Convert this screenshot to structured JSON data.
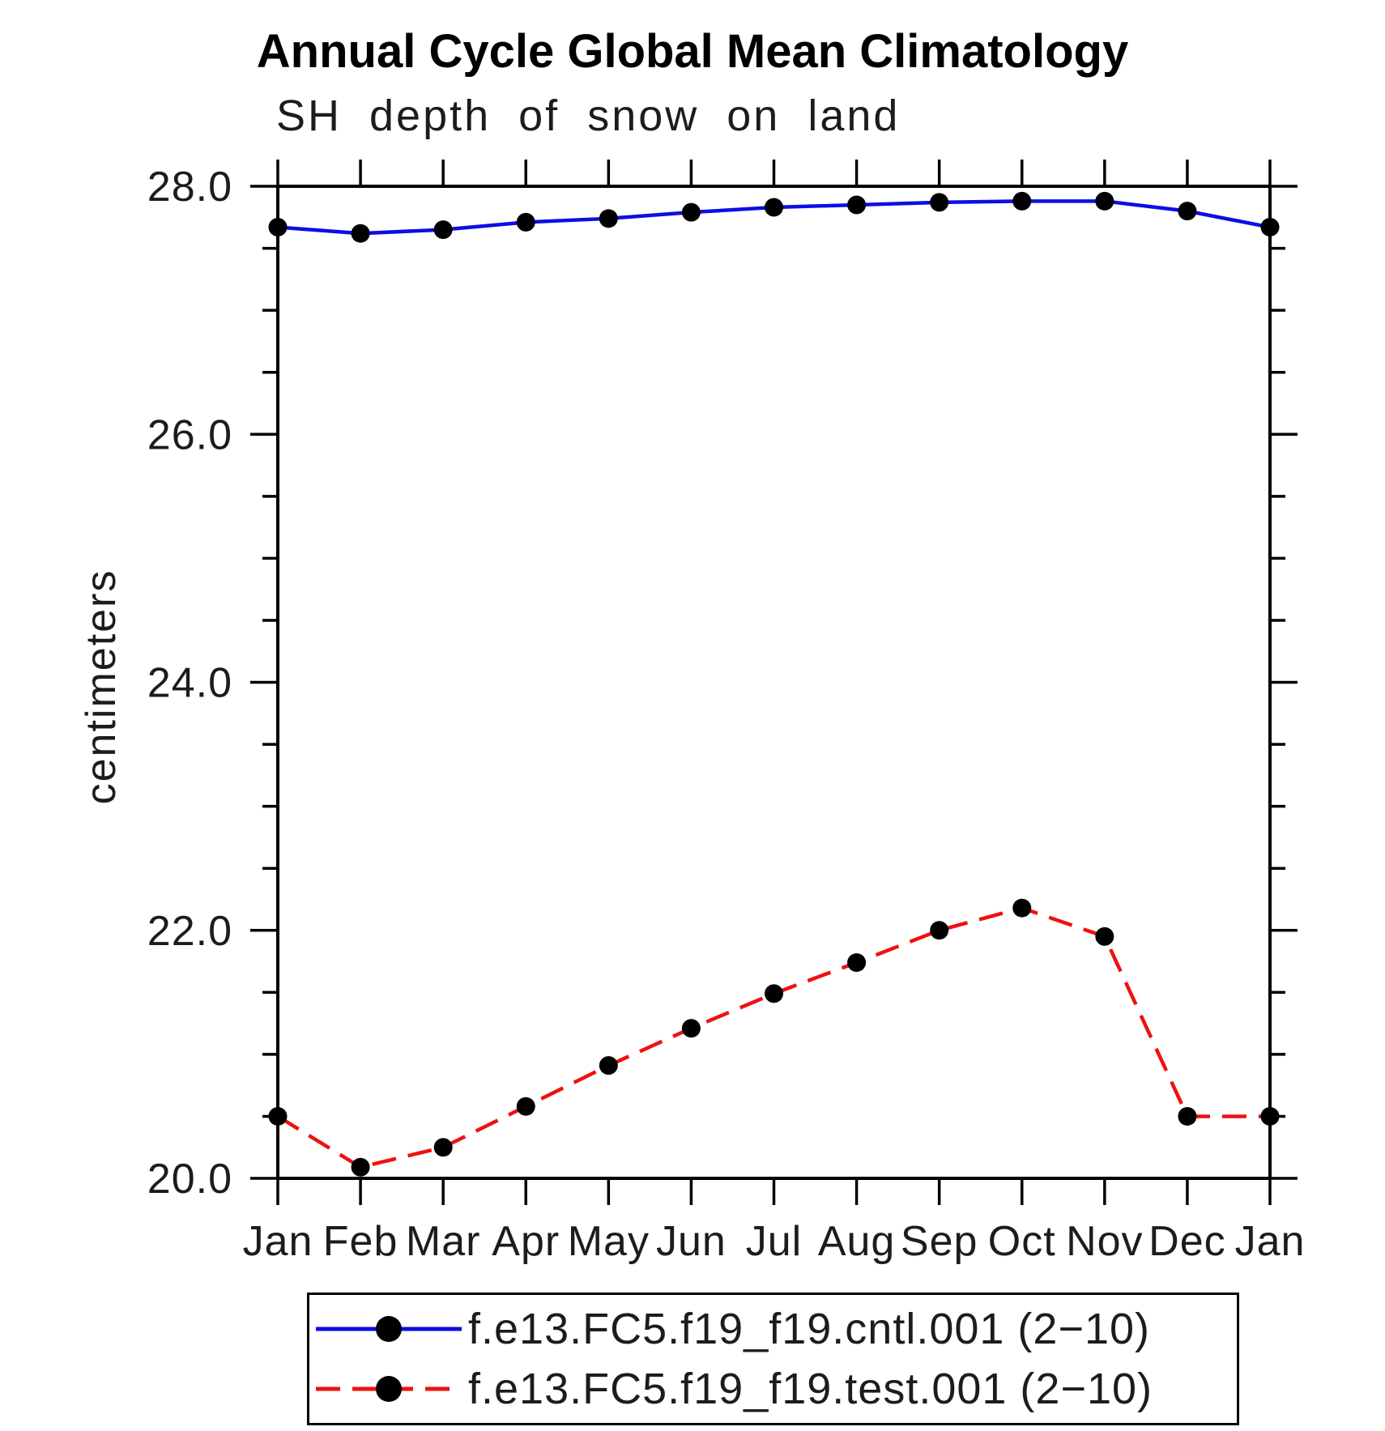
{
  "chart_data": {
    "type": "line",
    "title": "Annual Cycle Global Mean Climatology",
    "subtitle": "SH depth of snow on land",
    "ylabel": "centimeters",
    "xlabel": "",
    "categories": [
      "Jan",
      "Feb",
      "Mar",
      "Apr",
      "May",
      "Jun",
      "Jul",
      "Aug",
      "Sep",
      "Oct",
      "Nov",
      "Dec",
      "Jan"
    ],
    "series": [
      {
        "name": "f.e13.FC5.f19_f19.cntl.001 (2−10)",
        "color": "#0d0de6",
        "line_style": "solid",
        "marker": "black-circle",
        "values": [
          27.67,
          27.62,
          27.65,
          27.71,
          27.74,
          27.79,
          27.83,
          27.85,
          27.87,
          27.88,
          27.88,
          27.8,
          27.67
        ]
      },
      {
        "name": "f.e13.FC5.f19_f19.test.001 (2−10)",
        "color": "#ee1111",
        "line_style": "dashed",
        "marker": "black-circle",
        "values": [
          20.5,
          20.09,
          20.25,
          20.58,
          20.91,
          21.21,
          21.49,
          21.74,
          22.0,
          22.18,
          21.95,
          20.5,
          20.5
        ]
      }
    ],
    "ylim": [
      20.0,
      28.0
    ],
    "ytick_major_values": [
      20.0,
      22.0,
      24.0,
      26.0,
      28.0
    ],
    "ytick_major_labels": [
      "20.0",
      "22.0",
      "24.0",
      "26.0",
      "28.0"
    ],
    "ytick_minor_step": 0.5,
    "grid": false,
    "legend_position": "bottom",
    "axis_color": "#000000",
    "marker_color": "#000000"
  }
}
